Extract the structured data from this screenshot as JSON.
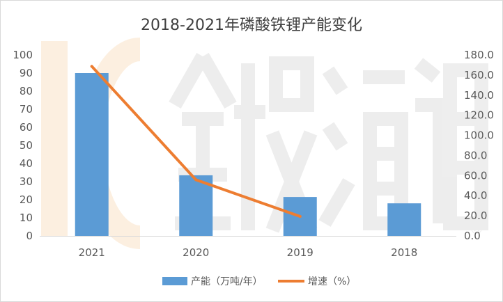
{
  "chart_data": {
    "type": "bar",
    "title": "2018-2021年磷酸铁锂产能变化",
    "categories": [
      "2021",
      "2020",
      "2019",
      "2018"
    ],
    "series": [
      {
        "name": "产能（万吨/年）",
        "type": "bar",
        "axis": "left",
        "color": "#5B9BD5",
        "values": [
          90,
          33.5,
          21.5,
          18
        ]
      },
      {
        "name": "增速（%）",
        "type": "line",
        "axis": "right",
        "color": "#ED7D31",
        "values": [
          168.7,
          55.8,
          19.4,
          null
        ]
      }
    ],
    "y_left": {
      "min": 0,
      "max": 100,
      "step": 10,
      "ticks": [
        "0",
        "10",
        "20",
        "30",
        "40",
        "50",
        "60",
        "70",
        "80",
        "90",
        "100"
      ]
    },
    "y_right": {
      "min": 0,
      "max": 180,
      "step": 20,
      "ticks": [
        "0.0",
        "20.0",
        "40.0",
        "60.0",
        "80.0",
        "100.0",
        "120.0",
        "140.0",
        "160.0",
        "180.0"
      ]
    },
    "grid": false,
    "legend_position": "bottom"
  }
}
